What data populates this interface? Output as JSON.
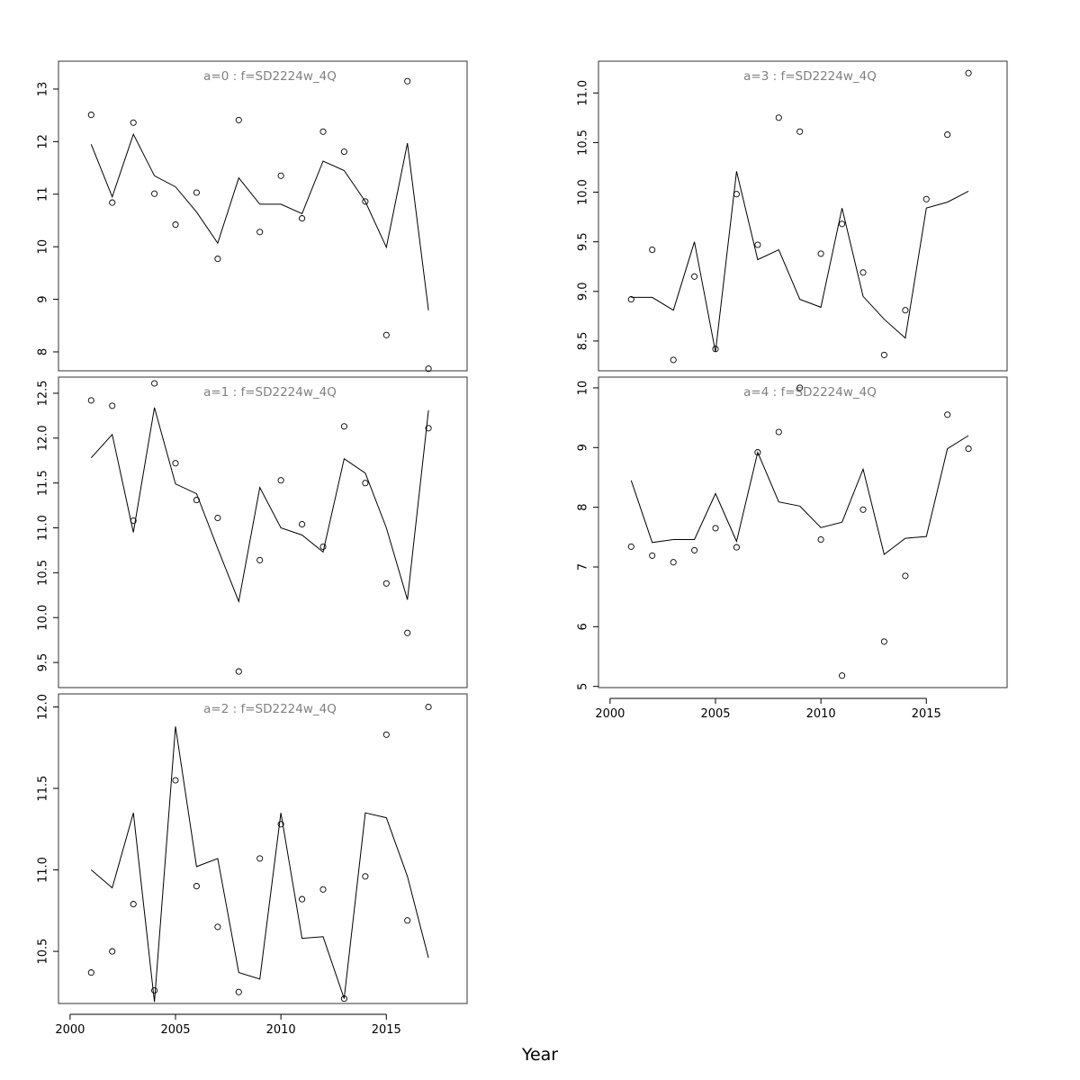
{
  "xlabel": "Year",
  "chart_data": [
    {
      "type": "line",
      "title": "a=0 : f=SD2224w_4Q",
      "x": [
        2001,
        2002,
        2003,
        2004,
        2005,
        2006,
        2007,
        2008,
        2009,
        2010,
        2011,
        2012,
        2013,
        2014,
        2015,
        2016,
        2017
      ],
      "series": [
        {
          "kind": "fitted",
          "style": "line",
          "values": [
            11.95,
            10.95,
            12.14,
            11.35,
            11.14,
            10.66,
            10.07,
            11.31,
            10.81,
            10.81,
            10.63,
            11.63,
            11.45,
            10.86,
            9.99,
            11.97,
            8.79
          ]
        },
        {
          "kind": "observed",
          "style": "points",
          "values": [
            12.51,
            10.84,
            12.36,
            11.01,
            10.42,
            11.03,
            9.77,
            12.41,
            10.28,
            11.35,
            10.54,
            12.19,
            11.81,
            10.86,
            8.32,
            13.15,
            7.68
          ]
        }
      ],
      "xlim": [
        1999.45,
        2018.83
      ],
      "ylim": [
        7.64,
        13.53
      ],
      "yticks": [
        8,
        9,
        10,
        11,
        12,
        13
      ],
      "xticks": [],
      "grid": false,
      "legend": "none"
    },
    {
      "type": "line",
      "title": "a=1 : f=SD2224w_4Q",
      "x": [
        2001,
        2002,
        2003,
        2004,
        2005,
        2006,
        2007,
        2008,
        2009,
        2010,
        2011,
        2012,
        2013,
        2014,
        2015,
        2016,
        2017
      ],
      "series": [
        {
          "kind": "fitted",
          "style": "line",
          "values": [
            11.78,
            12.04,
            10.95,
            12.34,
            11.49,
            11.38,
            10.77,
            10.18,
            11.45,
            11.0,
            10.92,
            10.73,
            11.77,
            11.61,
            11.0,
            10.2,
            12.31
          ]
        },
        {
          "kind": "observed",
          "style": "points",
          "values": [
            12.42,
            12.36,
            11.08,
            12.61,
            11.72,
            11.31,
            11.11,
            9.4,
            10.64,
            11.53,
            11.04,
            10.79,
            12.13,
            11.5,
            10.38,
            9.83,
            12.11
          ]
        }
      ],
      "xlim": [
        1999.45,
        2018.83
      ],
      "ylim": [
        9.22,
        12.68
      ],
      "yticks": [
        9.5,
        10.0,
        10.5,
        11.0,
        11.5,
        12.0,
        12.5
      ],
      "xticks": [],
      "grid": false,
      "legend": "none"
    },
    {
      "type": "line",
      "title": "a=2 : f=SD2224w_4Q",
      "x": [
        2001,
        2002,
        2003,
        2004,
        2005,
        2006,
        2007,
        2008,
        2009,
        2010,
        2011,
        2012,
        2013,
        2014,
        2015,
        2016,
        2017
      ],
      "series": [
        {
          "kind": "fitted",
          "style": "line",
          "values": [
            11.0,
            10.89,
            11.35,
            10.19,
            11.88,
            11.02,
            11.07,
            10.37,
            10.33,
            11.35,
            10.58,
            10.59,
            10.21,
            11.35,
            11.32,
            10.96,
            10.46
          ]
        },
        {
          "kind": "observed",
          "style": "points",
          "values": [
            10.37,
            10.5,
            10.79,
            10.26,
            11.55,
            10.9,
            10.65,
            10.25,
            11.07,
            11.28,
            10.82,
            10.88,
            10.21,
            10.96,
            11.83,
            10.69,
            12.0
          ]
        }
      ],
      "xlim": [
        1999.45,
        2018.83
      ],
      "ylim": [
        10.18,
        12.08
      ],
      "yticks": [
        10.5,
        11.0,
        11.5,
        12.0
      ],
      "xticks": [
        2000,
        2005,
        2010,
        2015
      ],
      "grid": false,
      "legend": "none"
    },
    {
      "type": "line",
      "title": "a=3 : f=SD2224w_4Q",
      "x": [
        2001,
        2002,
        2003,
        2004,
        2005,
        2006,
        2007,
        2008,
        2009,
        2010,
        2011,
        2012,
        2013,
        2014,
        2015,
        2016,
        2017
      ],
      "series": [
        {
          "kind": "fitted",
          "style": "line",
          "values": [
            8.94,
            8.94,
            8.81,
            9.5,
            8.39,
            10.21,
            9.32,
            9.42,
            8.92,
            8.84,
            9.84,
            8.95,
            8.72,
            8.53,
            9.84,
            9.9,
            10.01
          ]
        },
        {
          "kind": "observed",
          "style": "points",
          "values": [
            8.92,
            9.42,
            8.31,
            9.15,
            8.42,
            9.98,
            9.47,
            10.75,
            10.61,
            9.38,
            9.68,
            9.19,
            8.36,
            8.81,
            9.93,
            10.58,
            11.2
          ]
        }
      ],
      "xlim": [
        1999.45,
        2018.83
      ],
      "ylim": [
        8.2,
        11.32
      ],
      "yticks": [
        8.5,
        9.0,
        9.5,
        10.0,
        10.5,
        11.0
      ],
      "xticks": [],
      "grid": false,
      "legend": "none"
    },
    {
      "type": "line",
      "title": "a=4 : f=SD2224w_4Q",
      "x": [
        2001,
        2002,
        2003,
        2004,
        2005,
        2006,
        2007,
        2008,
        2009,
        2010,
        2011,
        2012,
        2013,
        2014,
        2015,
        2016,
        2017
      ],
      "series": [
        {
          "kind": "fitted",
          "style": "line",
          "values": [
            8.45,
            7.41,
            7.46,
            7.46,
            8.23,
            7.43,
            8.92,
            8.09,
            8.02,
            7.66,
            7.75,
            8.64,
            7.21,
            7.48,
            7.51,
            8.98,
            9.2
          ]
        },
        {
          "kind": "observed",
          "style": "points",
          "values": [
            7.34,
            7.19,
            7.08,
            7.28,
            7.65,
            7.33,
            8.92,
            9.26,
            10.0,
            7.46,
            5.18,
            7.96,
            5.75,
            6.85,
            null,
            9.55,
            8.98
          ]
        }
      ],
      "xlim": [
        1999.45,
        2018.83
      ],
      "ylim": [
        4.98,
        10.18
      ],
      "yticks": [
        5,
        6,
        7,
        8,
        9,
        10
      ],
      "xticks": [
        2000,
        2005,
        2010,
        2015
      ],
      "grid": false,
      "legend": "none"
    }
  ]
}
